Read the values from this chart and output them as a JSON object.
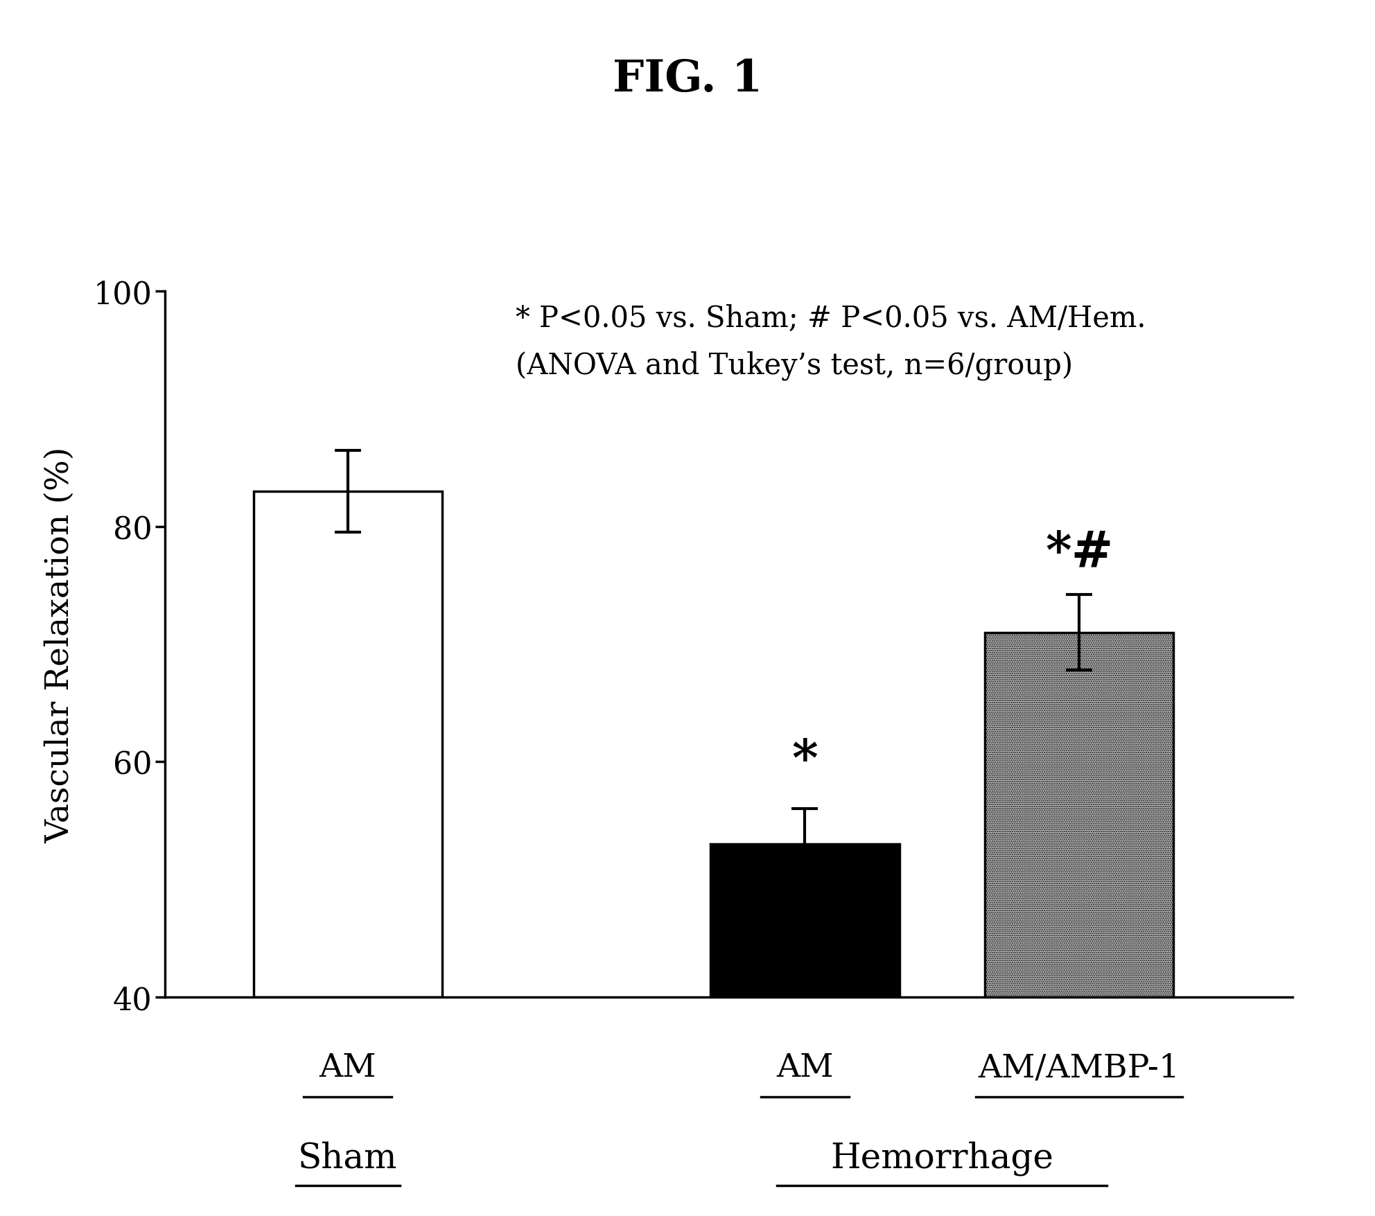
{
  "title": "FIG. 1",
  "ylabel": "Vascular Relaxation (%)",
  "ylim": [
    40,
    100
  ],
  "yticks": [
    40,
    60,
    80,
    100
  ],
  "bar_values": [
    83.0,
    53.0,
    71.0
  ],
  "bar_errors": [
    3.5,
    3.0,
    3.2
  ],
  "bar_colors": [
    "white",
    "black",
    "#b8b8b8"
  ],
  "stat_text_line1": "* P<0.05 vs. Sham; # P<0.05 vs. AM/Hem.",
  "stat_text_line2": "(ANOVA and Tukey’s test, n=6/group)",
  "background_color": "white",
  "bar_edge_color": "black",
  "bar_width": 0.62,
  "title_fontsize": 46,
  "ylabel_fontsize": 34,
  "tick_fontsize": 32,
  "annotation_fontsize": 52,
  "stat_fontsize": 30,
  "xlabel_fontsize": 34,
  "group_label_fontsize": 36
}
